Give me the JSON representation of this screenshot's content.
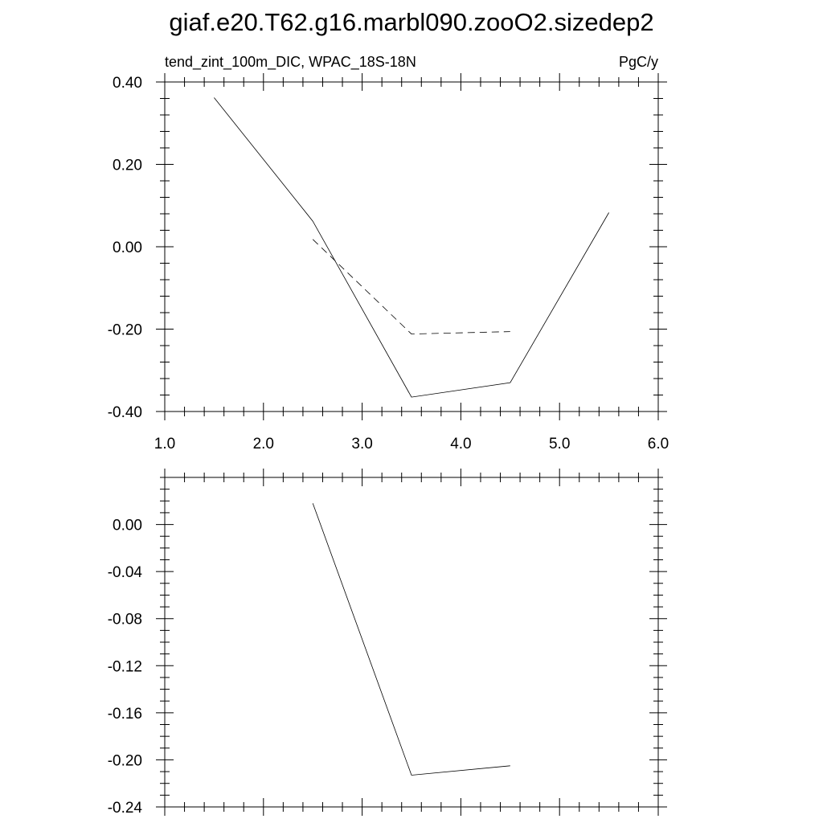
{
  "title": "giaf.e20.T62.g16.marbl090.zooO2.sizedep2",
  "chart_data": [
    {
      "type": "line",
      "subtitle_left": "tend_zint_100m_DIC, WPAC_18S-18N",
      "subtitle_right": "PgC/y",
      "xlim": [
        1.0,
        6.0
      ],
      "ylim": [
        -0.4,
        0.4
      ],
      "x_ticks": [
        "1.0",
        "2.0",
        "3.0",
        "4.0",
        "5.0",
        "6.0"
      ],
      "y_ticks": [
        "-0.40",
        "-0.20",
        "0.00",
        "0.20",
        "0.40"
      ],
      "grid": false,
      "series": [
        {
          "style": "solid",
          "x": [
            1.5,
            2.5,
            3.5,
            4.5,
            5.5
          ],
          "y": [
            0.362,
            0.062,
            -0.365,
            -0.33,
            0.083
          ]
        },
        {
          "style": "dashed",
          "x": [
            2.5,
            3.5,
            4.5
          ],
          "y": [
            0.018,
            -0.212,
            -0.206
          ]
        }
      ]
    },
    {
      "type": "line",
      "xlim": [
        1.0,
        6.0
      ],
      "ylim": [
        -0.24,
        0.04
      ],
      "x_ticks": [],
      "y_ticks": [
        "0.00",
        "-0.04",
        "-0.08",
        "-0.12",
        "-0.16",
        "-0.20",
        "-0.24"
      ],
      "grid": false,
      "series": [
        {
          "style": "solid",
          "x": [
            2.5,
            3.5,
            4.5
          ],
          "y": [
            0.018,
            -0.213,
            -0.205
          ]
        }
      ]
    }
  ]
}
